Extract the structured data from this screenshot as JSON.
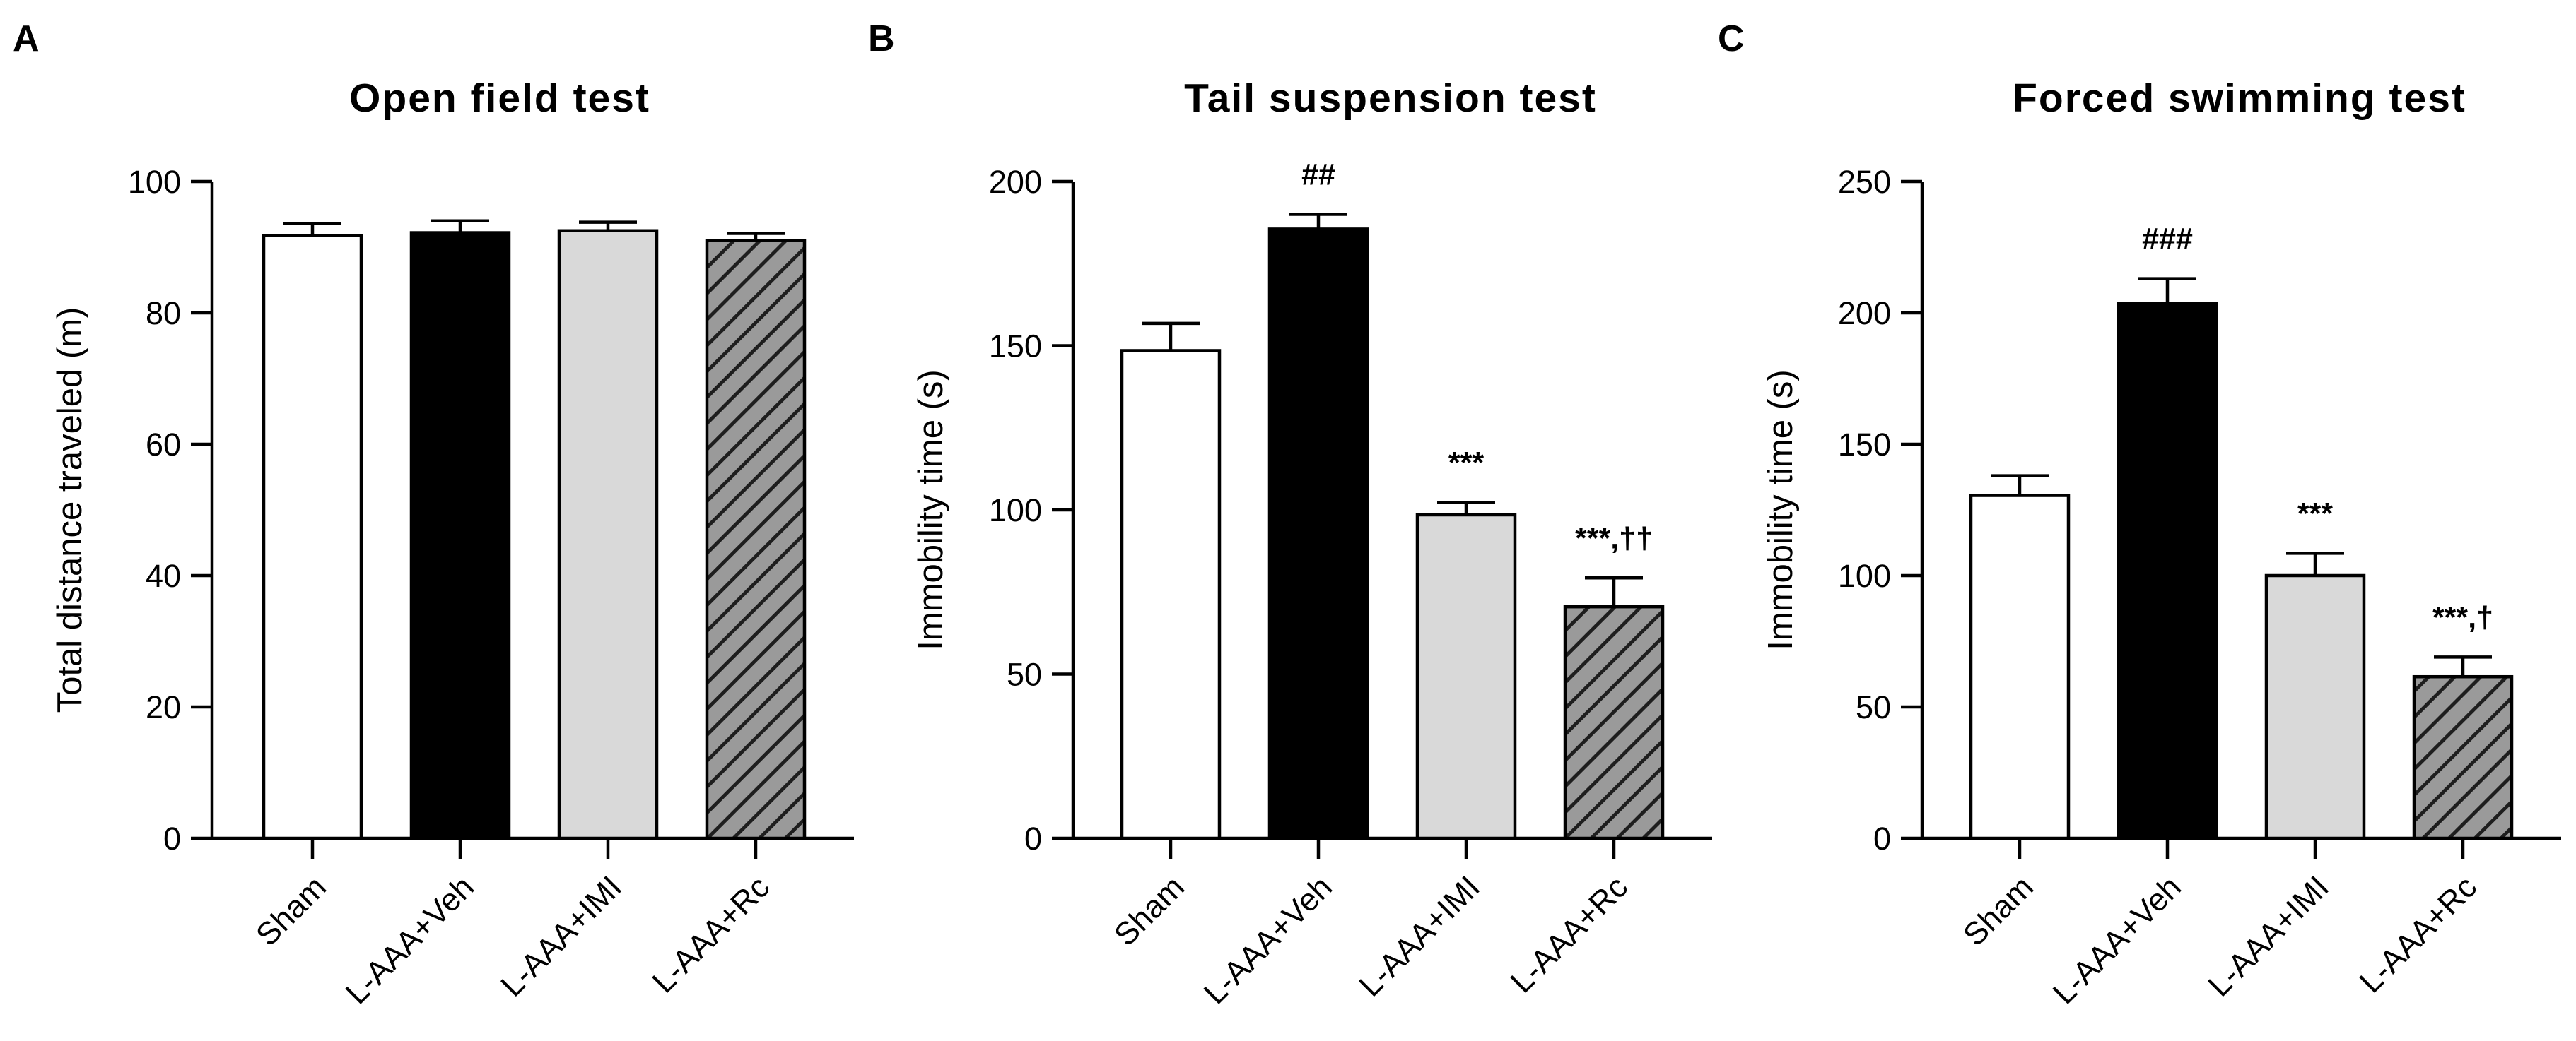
{
  "colors": {
    "sham": "#ffffff",
    "veh": "#000000",
    "imi": "#d9d9d9",
    "rc": "#9a9a9a",
    "hatch": "#1e1e1e"
  },
  "chart_data": [
    {
      "type": "bar",
      "panel": "A",
      "title": "Open field test",
      "xlabel": "",
      "ylabel": "Total distance traveled (m)",
      "ylim": [
        0,
        100
      ],
      "yticks": [
        0,
        20,
        40,
        60,
        80,
        100
      ],
      "categories": [
        "Sham",
        "L-AAA+Veh",
        "L-AAA+IMI",
        "L-AAA+Rc"
      ],
      "values": [
        91.8,
        92.2,
        92.5,
        91.0
      ],
      "errors": [
        1.8,
        1.8,
        1.3,
        1.1
      ],
      "annotations": [
        "",
        "",
        "",
        ""
      ]
    },
    {
      "type": "bar",
      "panel": "B",
      "title": "Tail suspension test",
      "xlabel": "",
      "ylabel": "Immobility time (s)",
      "ylim": [
        0,
        200
      ],
      "yticks": [
        0,
        50,
        100,
        150,
        200
      ],
      "categories": [
        "Sham",
        "L-AAA+Veh",
        "L-AAA+IMI",
        "L-AAA+Rc"
      ],
      "values": [
        148.5,
        185.5,
        98.5,
        70.5
      ],
      "errors": [
        8.3,
        4.5,
        3.8,
        8.8
      ],
      "annotations": [
        "",
        "##",
        "***",
        "***,††"
      ]
    },
    {
      "type": "bar",
      "panel": "C",
      "title": "Forced swimming test",
      "xlabel": "",
      "ylabel": "Immobility time (s)",
      "ylim": [
        0,
        250
      ],
      "yticks": [
        0,
        50,
        100,
        150,
        200,
        250
      ],
      "categories": [
        "Sham",
        "L-AAA+Veh",
        "L-AAA+IMI",
        "L-AAA+Rc"
      ],
      "values": [
        130.5,
        203.5,
        100.0,
        61.5
      ],
      "errors": [
        7.5,
        9.5,
        8.5,
        7.5
      ],
      "annotations": [
        "",
        "###",
        "***",
        "***,†"
      ]
    }
  ]
}
